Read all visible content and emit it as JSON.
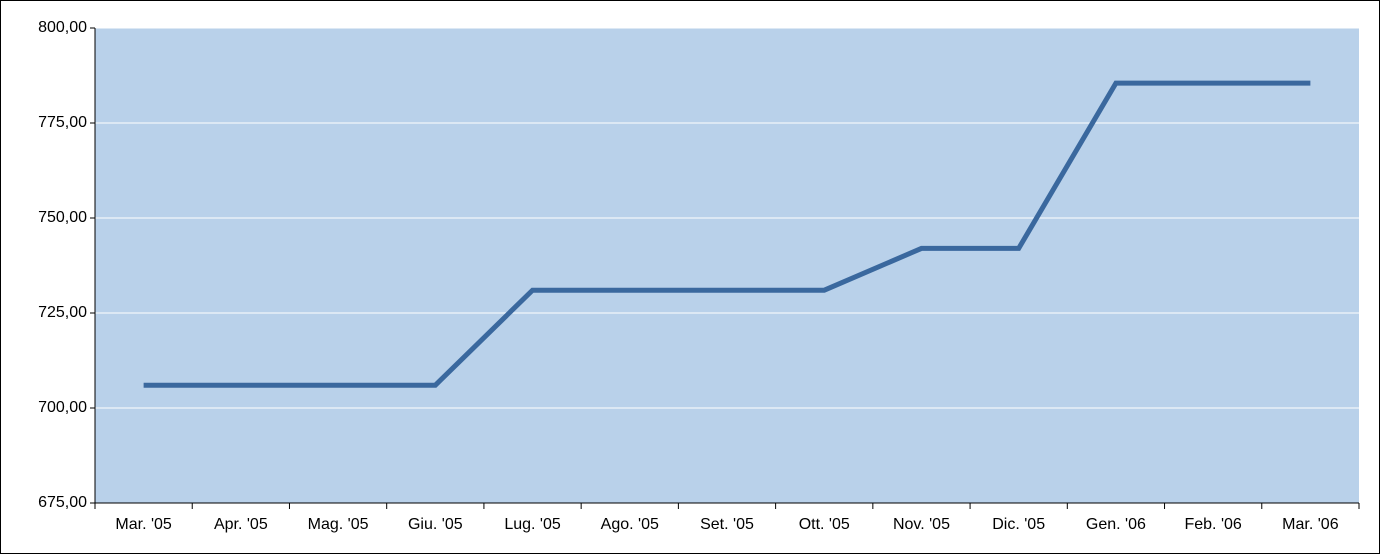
{
  "chart_data": {
    "type": "line",
    "categories": [
      "Mar. '05",
      "Apr. '05",
      "Mag. '05",
      "Giu. '05",
      "Lug. '05",
      "Ago. '05",
      "Set. '05",
      "Ott. '05",
      "Nov. '05",
      "Dic. '05",
      "Gen. '06",
      "Feb. '06",
      "Mar. '06"
    ],
    "values": [
      706,
      706,
      706,
      706,
      731,
      731,
      731,
      731,
      742,
      742,
      785.5,
      785.5,
      785.5
    ],
    "color": "#3a689e",
    "ylim": [
      675,
      800
    ],
    "yticks": [
      {
        "value": 675,
        "label": "675,00"
      },
      {
        "value": 700,
        "label": "700,00"
      },
      {
        "value": 725,
        "label": "725,00"
      },
      {
        "value": 750,
        "label": "750,00"
      },
      {
        "value": 775,
        "label": "775,00"
      },
      {
        "value": 800,
        "label": "800,00"
      }
    ],
    "grid": true,
    "background": "#b9d1ea"
  }
}
